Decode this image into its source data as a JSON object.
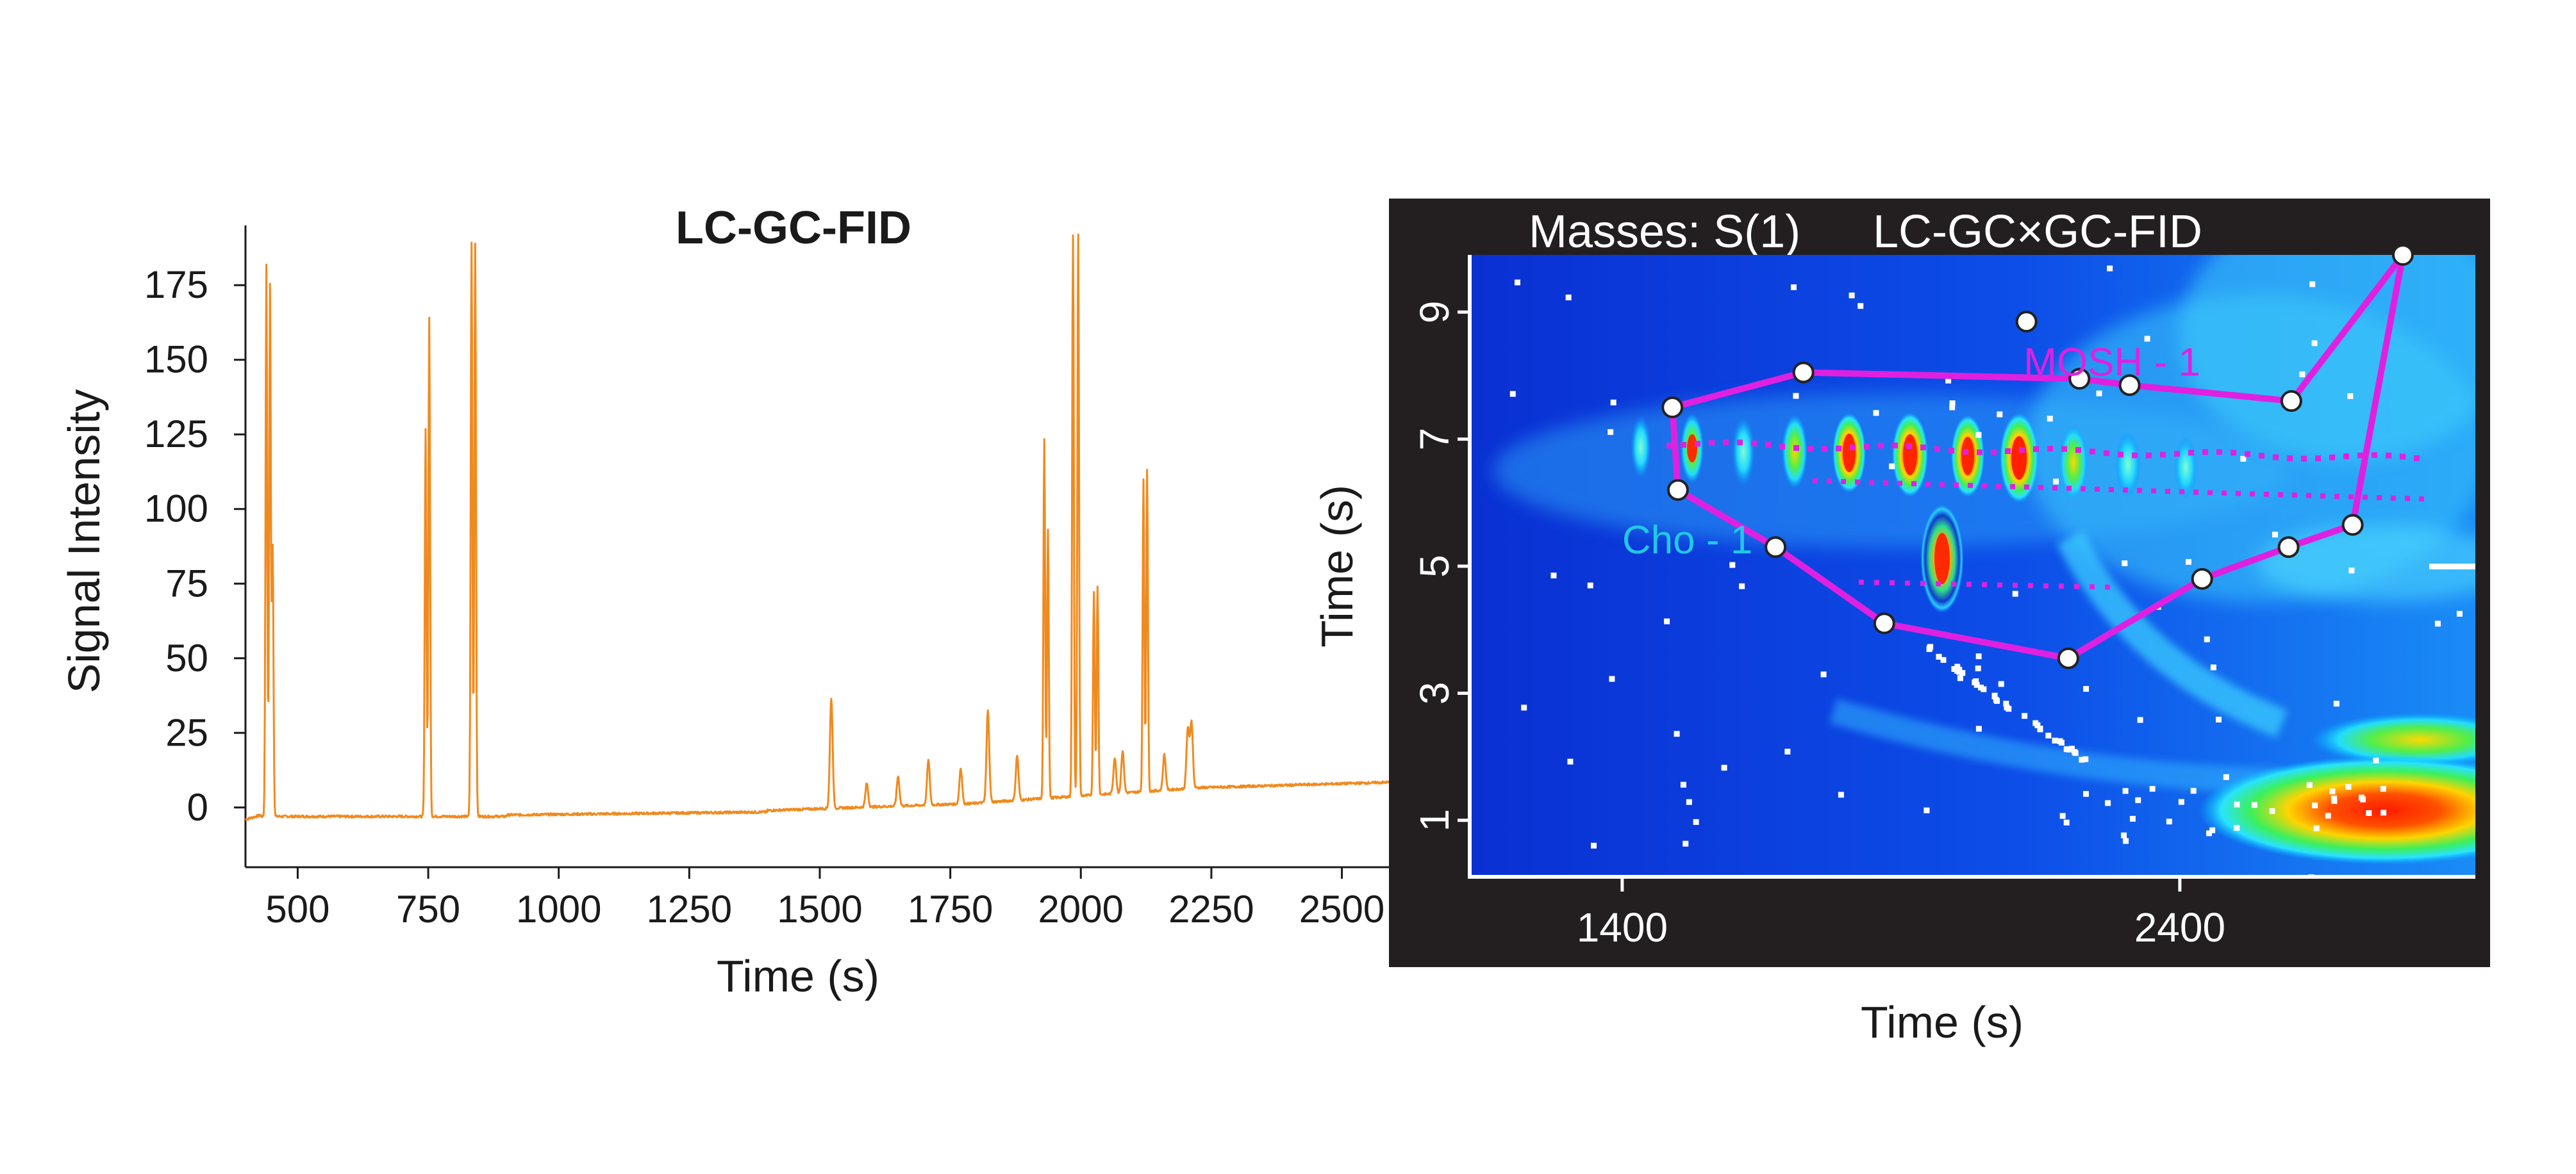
{
  "chart_data": [
    {
      "type": "line",
      "title": "LC-GC-FID",
      "xlabel": "Time (s)",
      "ylabel": "Signal Intensity",
      "xlim": [
        400,
        2600
      ],
      "ylim": [
        -20,
        195
      ],
      "x_ticks": [
        500,
        750,
        1000,
        1250,
        1500,
        1750,
        2000,
        2250,
        2500
      ],
      "x_tick_labels": [
        "500",
        "750",
        "1000",
        "1250",
        "1500",
        "1750",
        "2000",
        "2250",
        "2500"
      ],
      "y_ticks": [
        0,
        25,
        50,
        75,
        100,
        125,
        150,
        175
      ],
      "y_tick_labels": [
        "0",
        "25",
        "50",
        "75",
        "100",
        "125",
        "150",
        "175"
      ],
      "line_color": "#f08a1e",
      "peaks": [
        {
          "x": 440,
          "h": 185
        },
        {
          "x": 447,
          "h": 178
        },
        {
          "x": 452,
          "h": 90
        },
        {
          "x": 745,
          "h": 130
        },
        {
          "x": 752,
          "h": 167
        },
        {
          "x": 833,
          "h": 192
        },
        {
          "x": 840,
          "h": 192
        },
        {
          "x": 1522,
          "h": 37
        },
        {
          "x": 1590,
          "h": 8
        },
        {
          "x": 1650,
          "h": 10
        },
        {
          "x": 1708,
          "h": 15
        },
        {
          "x": 1770,
          "h": 12
        },
        {
          "x": 1822,
          "h": 31
        },
        {
          "x": 1878,
          "h": 15
        },
        {
          "x": 1930,
          "h": 120
        },
        {
          "x": 1937,
          "h": 90
        },
        {
          "x": 1985,
          "h": 192
        },
        {
          "x": 1995,
          "h": 192
        },
        {
          "x": 2025,
          "h": 68
        },
        {
          "x": 2032,
          "h": 70
        },
        {
          "x": 2065,
          "h": 12
        },
        {
          "x": 2080,
          "h": 14
        },
        {
          "x": 2120,
          "h": 105
        },
        {
          "x": 2127,
          "h": 108
        },
        {
          "x": 2160,
          "h": 12
        },
        {
          "x": 2205,
          "h": 20
        },
        {
          "x": 2212,
          "h": 22
        }
      ]
    },
    {
      "type": "heatmap",
      "title": "LC-GC×GC-FID",
      "header_label": "Masses: S(1)",
      "xlabel": "Time (s)",
      "ylabel": "Time (s)",
      "xlim": [
        1130,
        2930
      ],
      "ylim": [
        0.1,
        9.9
      ],
      "x_ticks": [
        1400,
        2400
      ],
      "x_tick_labels": [
        "1400",
        "2400"
      ],
      "y_ticks": [
        1,
        3,
        5,
        7,
        9
      ],
      "y_tick_labels": [
        "1",
        "3",
        "5",
        "7",
        "9"
      ],
      "annotations": [
        {
          "text": "MOSH - 1",
          "x": 2120,
          "y": 8.0
        },
        {
          "text": "Cho - 1",
          "x": 1400,
          "y": 5.2
        }
      ],
      "polygon": [
        {
          "x": 1490,
          "y": 7.5
        },
        {
          "x": 1725,
          "y": 8.05
        },
        {
          "x": 2220,
          "y": 7.95
        },
        {
          "x": 2310,
          "y": 7.85
        },
        {
          "x": 2600,
          "y": 7.6
        },
        {
          "x": 2800,
          "y": 9.9
        },
        {
          "x": 2710,
          "y": 5.65
        },
        {
          "x": 2595,
          "y": 5.3
        },
        {
          "x": 2440,
          "y": 4.8
        },
        {
          "x": 2200,
          "y": 3.55
        },
        {
          "x": 1870,
          "y": 4.1
        },
        {
          "x": 1675,
          "y": 5.3
        },
        {
          "x": 1500,
          "y": 6.2
        }
      ],
      "extra_markers": [
        {
          "x": 2125,
          "y": 8.85
        }
      ],
      "polygon_color": "#e020e0",
      "background_color": "#231f20"
    }
  ]
}
